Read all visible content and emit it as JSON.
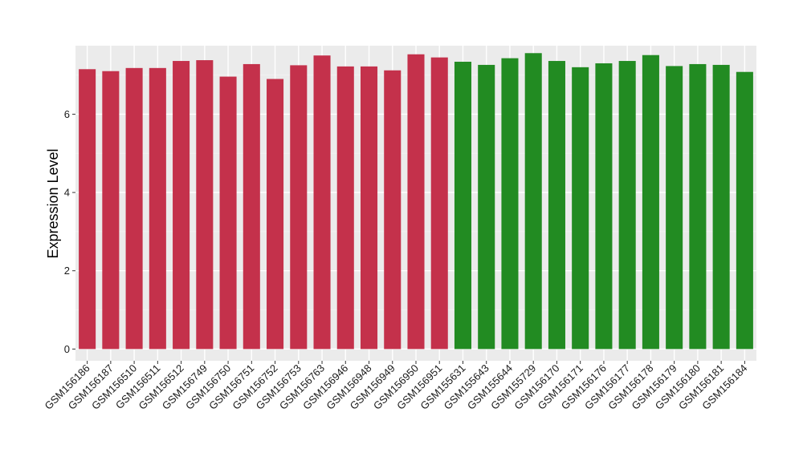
{
  "chart_data": {
    "type": "bar",
    "title": "",
    "xlabel": "",
    "ylabel": "Expression Level",
    "ylim": [
      -0.3,
      7.75
    ],
    "yticks": [
      0,
      2,
      4,
      6
    ],
    "grid": true,
    "legend": "none",
    "categories": [
      "GSM156186",
      "GSM156187",
      "GSM156510",
      "GSM156511",
      "GSM156512",
      "GSM156749",
      "GSM156750",
      "GSM156751",
      "GSM156752",
      "GSM156753",
      "GSM156763",
      "GSM156946",
      "GSM156948",
      "GSM156949",
      "GSM156950",
      "GSM156951",
      "GSM155631",
      "GSM155643",
      "GSM155644",
      "GSM155729",
      "GSM156170",
      "GSM156171",
      "GSM156176",
      "GSM156177",
      "GSM156178",
      "GSM156179",
      "GSM156180",
      "GSM156181",
      "GSM156184"
    ],
    "values": [
      7.15,
      7.1,
      7.18,
      7.18,
      7.36,
      7.38,
      6.96,
      7.28,
      6.9,
      7.25,
      7.5,
      7.22,
      7.22,
      7.12,
      7.53,
      7.45,
      7.34,
      7.26,
      7.43,
      7.56,
      7.36,
      7.2,
      7.3,
      7.36,
      7.51,
      7.23,
      7.28,
      7.26,
      7.08
    ],
    "group_sizes": [
      16,
      13
    ],
    "colors": [
      "#c4314b",
      "#228b22"
    ]
  },
  "style": {
    "panel_bg": "#ebebeb",
    "grid_major": "#ffffff",
    "grid_minor": "#f4f4f4",
    "tick_color": "#333333"
  }
}
